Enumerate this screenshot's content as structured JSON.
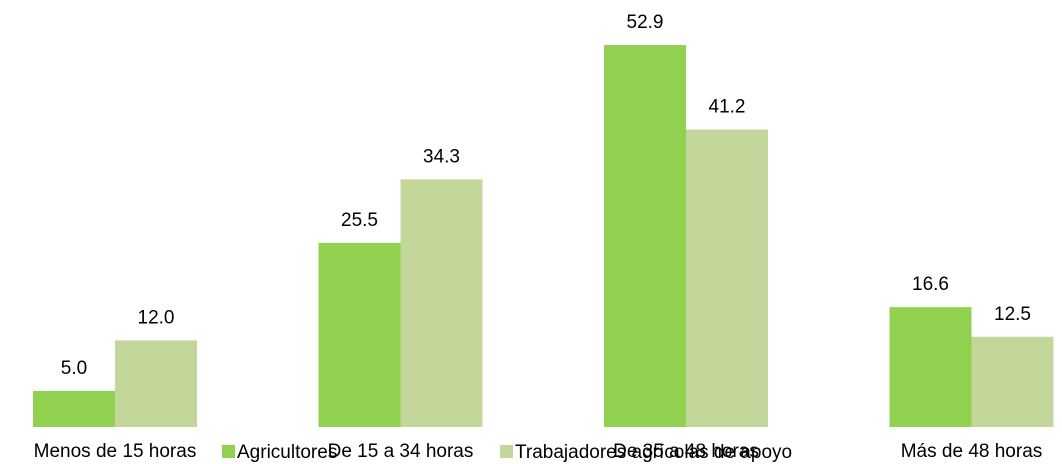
{
  "chart_data": {
    "type": "bar",
    "categories": [
      "Menos de 15 horas",
      "De 15 a 34 horas",
      "De 35 a 48 horas",
      "Más de 48 horas"
    ],
    "series": [
      {
        "name": "Agricultores",
        "color": "#92d050",
        "values": [
          5.0,
          25.5,
          52.9,
          16.6
        ],
        "value_labels": [
          "5.0",
          "25.5",
          "52.9",
          "16.6"
        ]
      },
      {
        "name": "Trabajadores agrícolas de apoyo",
        "color": "#c4d79b",
        "values": [
          12.0,
          34.3,
          41.2,
          12.5
        ],
        "value_labels": [
          "12.0",
          "34.3",
          "41.2",
          "12.5"
        ]
      }
    ],
    "ylim": [
      0,
      59
    ],
    "grid": false,
    "legend": "bottom"
  }
}
